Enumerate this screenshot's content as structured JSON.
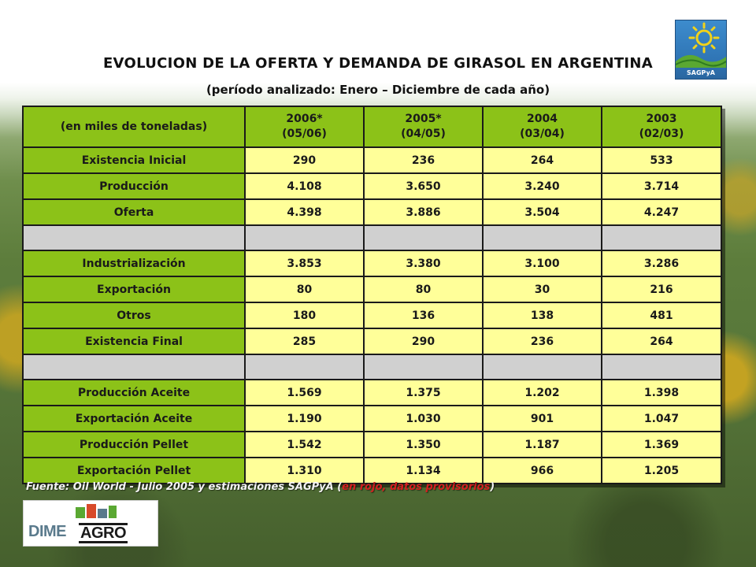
{
  "header": {
    "title": "EVOLUCION DE LA OFERTA Y DEMANDA DE GIRASOL EN ARGENTINA",
    "subtitle": "(período analizado: Enero – Diciembre de cada año)"
  },
  "logos": {
    "sagpya_text": "SAGPyA",
    "dime_text": "DIME",
    "agro_text": "AGRO"
  },
  "table": {
    "unit_header": "(en miles de toneladas)",
    "columns": [
      {
        "line1": "2006*",
        "line2": "(05/06)"
      },
      {
        "line1": "2005*",
        "line2": "(04/05)"
      },
      {
        "line1": "2004",
        "line2": "(03/04)"
      },
      {
        "line1": "2003",
        "line2": "(02/03)"
      }
    ],
    "rows": [
      {
        "label": "Existencia Inicial",
        "values": [
          "290",
          "236",
          "264",
          "533"
        ],
        "red": [
          true,
          false,
          false,
          false
        ]
      },
      {
        "label": "Producción",
        "values": [
          "4.108",
          "3.650",
          "3.240",
          "3.714"
        ],
        "red": [
          true,
          false,
          false,
          false
        ]
      },
      {
        "label": "Oferta",
        "values": [
          "4.398",
          "3.886",
          "3.504",
          "4.247"
        ],
        "red": [
          true,
          false,
          false,
          false
        ]
      },
      {
        "label": "Industrialización",
        "values": [
          "3.853",
          "3.380",
          "3.100",
          "3.286"
        ],
        "red": [
          true,
          true,
          false,
          false
        ]
      },
      {
        "label": "Exportación",
        "values": [
          "80",
          "80",
          "30",
          "216"
        ],
        "red": [
          true,
          true,
          false,
          false
        ]
      },
      {
        "label": "Otros",
        "values": [
          "180",
          "136",
          "138",
          "481"
        ],
        "red": [
          true,
          true,
          false,
          false
        ]
      },
      {
        "label": "Existencia Final",
        "values": [
          "285",
          "290",
          "236",
          "264"
        ],
        "red": [
          true,
          true,
          false,
          false
        ]
      },
      {
        "label": "Producción Aceite",
        "values": [
          "1.569",
          "1.375",
          "1.202",
          "1.398"
        ],
        "red": [
          true,
          true,
          false,
          false
        ]
      },
      {
        "label": "Exportación Aceite",
        "values": [
          "1.190",
          "1.030",
          "901",
          "1.047"
        ],
        "red": [
          true,
          true,
          false,
          false
        ]
      },
      {
        "label": "Producción Pellet",
        "values": [
          "1.542",
          "1.350",
          "1.187",
          "1.369"
        ],
        "red": [
          true,
          true,
          false,
          false
        ]
      },
      {
        "label": "Exportación Pellet",
        "values": [
          "1.310",
          "1.134",
          "966",
          "1.205"
        ],
        "red": [
          true,
          true,
          false,
          false
        ]
      }
    ]
  },
  "footer": {
    "source": "Fuente: Oil World - Julio 2005 y estimaciones SAGPyA",
    "note_open": "(",
    "note": "en rojo, datos provisorios",
    "note_close": ")"
  },
  "colors": {
    "header_green": "#8cc218",
    "value_yellow": "#ffff99",
    "separator_gray": "#d0d0d0",
    "provisional_red": "#c00000"
  }
}
